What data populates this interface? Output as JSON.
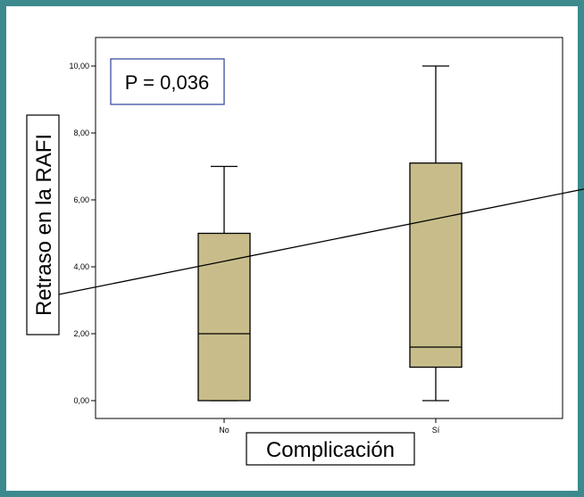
{
  "chart_data": {
    "type": "box",
    "xlabel": "Complicación",
    "ylabel": "Retraso en la RAFI",
    "ylim": [
      0,
      10
    ],
    "yticks": [
      "0,00",
      "2,00",
      "4,00",
      "6,00",
      "8,00",
      "10,00"
    ],
    "categories": [
      "No",
      "Sí"
    ],
    "boxes": [
      {
        "category": "No",
        "min": 0,
        "q1": 0,
        "median": 2,
        "q3": 5,
        "max": 7
      },
      {
        "category": "Sí",
        "min": 0,
        "q1": 1,
        "median": 1.6,
        "q3": 7.1,
        "max": 10
      }
    ],
    "trend_line": {
      "from": {
        "x": 0.2,
        "y": 3.15
      },
      "to": {
        "x": 2.8,
        "y": 6.45
      }
    },
    "annotation": "P = 0,036",
    "colors": {
      "box_fill": "#c8bd8a",
      "frame": "#3d8a8e",
      "annotation_border": "#3a4ea0"
    }
  }
}
